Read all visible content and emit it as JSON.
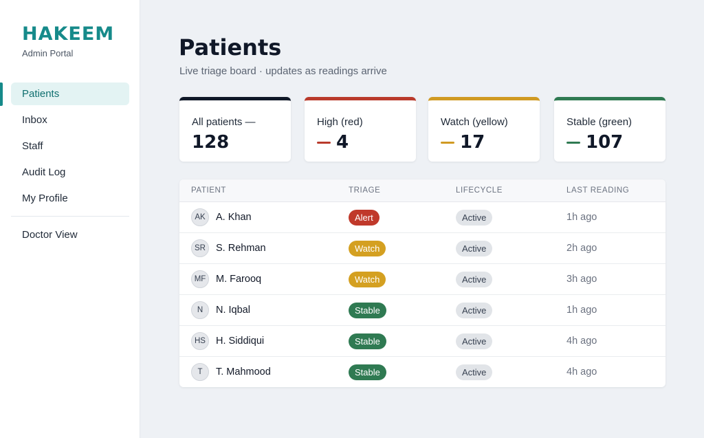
{
  "brand": {
    "name": "HAKEEM",
    "subtitle": "Admin Portal"
  },
  "nav": {
    "items": [
      {
        "label": "Patients",
        "active": true
      },
      {
        "label": "Inbox",
        "active": false
      },
      {
        "label": "Staff",
        "active": false
      },
      {
        "label": "Audit Log",
        "active": false
      },
      {
        "label": "My Profile",
        "active": false
      }
    ],
    "secondary": [
      {
        "label": "Doctor View"
      }
    ]
  },
  "page": {
    "title": "Patients",
    "subtitle": "Live triage board · updates as readings arrive"
  },
  "stats": [
    {
      "label": "All patients —",
      "value": "128",
      "color": "#101828",
      "dash": false
    },
    {
      "label": "High (red)",
      "value": "4",
      "color": "#b93a2b",
      "dash": true
    },
    {
      "label": "Watch (yellow)",
      "value": "17",
      "color": "#d09a22",
      "dash": true
    },
    {
      "label": "Stable (green)",
      "value": "107",
      "color": "#2f7a52",
      "dash": true
    }
  ],
  "table": {
    "headers": {
      "patient": "PATIENT",
      "triage": "TRIAGE",
      "lifecycle": "LIFECYCLE",
      "last_reading": "LAST READING"
    },
    "rows": [
      {
        "initials": "AK",
        "name": "A. Khan",
        "triage": "Alert",
        "triage_color": "#c0392b",
        "lifecycle": "Active",
        "last_reading": "1h ago"
      },
      {
        "initials": "SR",
        "name": "S. Rehman",
        "triage": "Watch",
        "triage_color": "#d4a021",
        "lifecycle": "Active",
        "last_reading": "2h ago"
      },
      {
        "initials": "MF",
        "name": "M. Farooq",
        "triage": "Watch",
        "triage_color": "#d4a021",
        "lifecycle": "Active",
        "last_reading": "3h ago"
      },
      {
        "initials": "N",
        "name": "N. Iqbal",
        "triage": "Stable",
        "triage_color": "#2f7a52",
        "lifecycle": "Active",
        "last_reading": "1h ago"
      },
      {
        "initials": "HS",
        "name": "H. Siddiqui",
        "triage": "Stable",
        "triage_color": "#2f7a52",
        "lifecycle": "Active",
        "last_reading": "4h ago"
      },
      {
        "initials": "T",
        "name": "T. Mahmood",
        "triage": "Stable",
        "triage_color": "#2f7a52",
        "lifecycle": "Active",
        "last_reading": "4h ago"
      }
    ]
  }
}
